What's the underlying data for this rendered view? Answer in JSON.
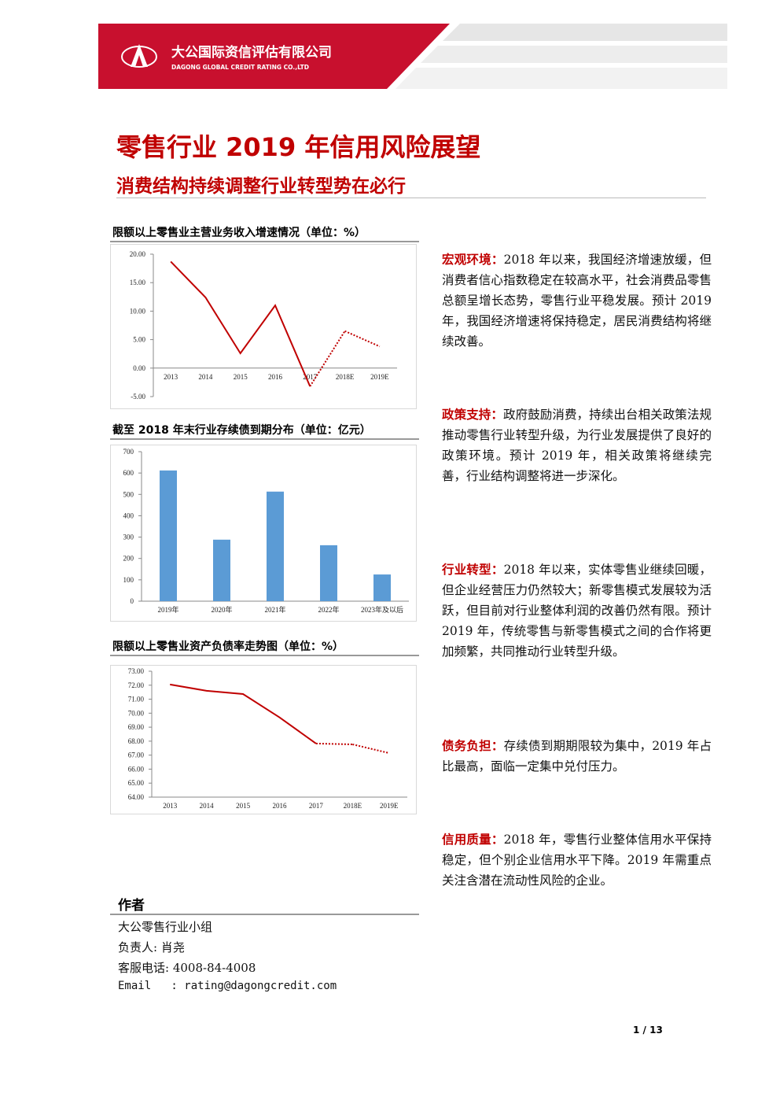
{
  "header": {
    "company_cn": "大公国际资信评估有限公司",
    "company_en": "DAGONG GLOBAL CREDIT RATING CO.,LTD"
  },
  "title": "零售行业 2019 年信用风险展望",
  "subtitle": "消费结构持续调整行业转型势在必行",
  "chart_data": [
    {
      "type": "line",
      "title": "限额以上零售业主营业务收入增速情况（单位：%）",
      "categories": [
        "2013",
        "2014",
        "2015",
        "2016",
        "2017",
        "2018E",
        "2019E"
      ],
      "series": [
        {
          "color": "#c00000",
          "style": "solid",
          "values": [
            18.7,
            12.4,
            2.6,
            11.0,
            -3.2,
            null,
            null
          ]
        },
        {
          "color": "#c00000",
          "style": "dotted",
          "values": [
            null,
            null,
            null,
            null,
            null,
            6.5,
            3.8
          ]
        }
      ],
      "ylim": [
        -5,
        20
      ],
      "yticks": [
        {
          "value": -5,
          "label": "-5.00"
        },
        {
          "value": 0,
          "label": "0.00"
        },
        {
          "value": 5,
          "label": "5.00"
        },
        {
          "value": 10,
          "label": "10.00"
        },
        {
          "value": 15,
          "label": "15.00"
        },
        {
          "value": 20,
          "label": "20.00"
        }
      ]
    },
    {
      "type": "bar",
      "title": "截至 2018 年末行业存续债到期分布（单位：亿元）",
      "categories": [
        "2019年",
        "2020年",
        "2021年",
        "2022年",
        "2023年及以后"
      ],
      "values": [
        612,
        288,
        513,
        262,
        125
      ],
      "color": "#5b9bd5",
      "ylim": [
        0,
        700
      ],
      "yticks": [
        0,
        100,
        200,
        300,
        400,
        500,
        600,
        700
      ]
    },
    {
      "type": "line",
      "title": "限额以上零售业资产负债率走势图（单位：%）",
      "categories": [
        "2013",
        "2014",
        "2015",
        "2016",
        "2017",
        "2018E",
        "2019E"
      ],
      "series": [
        {
          "color": "#c00000",
          "style": "solid",
          "values": [
            72.05,
            71.6,
            71.37,
            69.7,
            67.83,
            null,
            null
          ]
        },
        {
          "color": "#c00000",
          "style": "dotted",
          "values": [
            null,
            null,
            null,
            null,
            null,
            67.77,
            67.15
          ]
        }
      ],
      "ylim": [
        64,
        73
      ],
      "yticks": [
        {
          "value": 64,
          "label": "64.00"
        },
        {
          "value": 65,
          "label": "65.00"
        },
        {
          "value": 66,
          "label": "66.00"
        },
        {
          "value": 67,
          "label": "67.00"
        },
        {
          "value": 68,
          "label": "68.00"
        },
        {
          "value": 69,
          "label": "69.00"
        },
        {
          "value": 70,
          "label": "70.00"
        },
        {
          "value": 71,
          "label": "71.00"
        },
        {
          "value": 72,
          "label": "72.00"
        },
        {
          "value": 73,
          "label": "73.00"
        }
      ]
    }
  ],
  "sections": [
    {
      "label": "宏观环境：",
      "text": "2018 年以来，我国经济增速放缓，但消费者信心指数稳定在较高水平，社会消费品零售总额呈增长态势，零售行业平稳发展。预计 2019 年，我国经济增速将保持稳定，居民消费结构将继续改善。"
    },
    {
      "label": "政策支持：",
      "text": "政府鼓励消费，持续出台相关政策法规推动零售行业转型升级，为行业发展提供了良好的政策环境。预计 2019 年，相关政策将继续完善，行业结构调整将进一步深化。"
    },
    {
      "label": "行业转型：",
      "text": "2018 年以来，实体零售业继续回暖，但企业经营压力仍然较大；新零售模式发展较为活跃，但目前对行业整体利润的改善仍然有限。预计 2019 年，传统零售与新零售模式之间的合作将更加频繁，共同推动行业转型升级。"
    },
    {
      "label": "债务负担：",
      "text": "存续债到期期限较为集中，2019 年占比最高，面临一定集中兑付压力。"
    },
    {
      "label": "信用质量：",
      "text": "2018 年，零售行业整体信用水平保持稳定，但个别企业信用水平下降。2019 年需重点关注含潜在流动性风险的企业。"
    }
  ],
  "author": {
    "heading": "作者",
    "lines": [
      "大公零售行业小组",
      "负责人: 肖尧",
      "客服电话: 4008-84-4008",
      "Email   : rating@dagongcredit.com"
    ]
  },
  "page_number": "1 / 13"
}
